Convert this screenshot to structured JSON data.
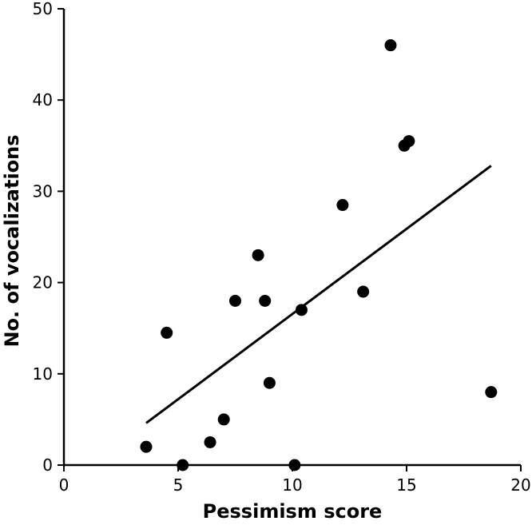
{
  "chart_data": {
    "type": "scatter",
    "title": "",
    "xlabel": "Pessimism score",
    "ylabel": "No. of vocalizations",
    "xlim": [
      0,
      20
    ],
    "ylim": [
      0,
      50
    ],
    "x_ticks": [
      "0",
      "5",
      "10",
      "15",
      "20"
    ],
    "y_ticks": [
      "0",
      "10",
      "20",
      "30",
      "40",
      "50"
    ],
    "grid": false,
    "legend": "none",
    "series": [
      {
        "points": [
          {
            "x": 3.6,
            "y": 2
          },
          {
            "x": 4.5,
            "y": 14.5
          },
          {
            "x": 5.2,
            "y": 0
          },
          {
            "x": 6.4,
            "y": 2.5
          },
          {
            "x": 7.0,
            "y": 5
          },
          {
            "x": 7.5,
            "y": 18
          },
          {
            "x": 8.5,
            "y": 23
          },
          {
            "x": 8.8,
            "y": 18
          },
          {
            "x": 9.0,
            "y": 9
          },
          {
            "x": 10.1,
            "y": 0
          },
          {
            "x": 10.4,
            "y": 17
          },
          {
            "x": 12.2,
            "y": 28.5
          },
          {
            "x": 13.1,
            "y": 19
          },
          {
            "x": 14.3,
            "y": 46
          },
          {
            "x": 14.9,
            "y": 35
          },
          {
            "x": 15.1,
            "y": 35.5
          },
          {
            "x": 18.7,
            "y": 8
          }
        ]
      }
    ],
    "trendline": {
      "x": [
        3.6,
        18.7
      ],
      "y": [
        4.6,
        32.8
      ]
    },
    "colors": {
      "points": "#000000",
      "line": "#000000",
      "axes": "#000000"
    }
  }
}
